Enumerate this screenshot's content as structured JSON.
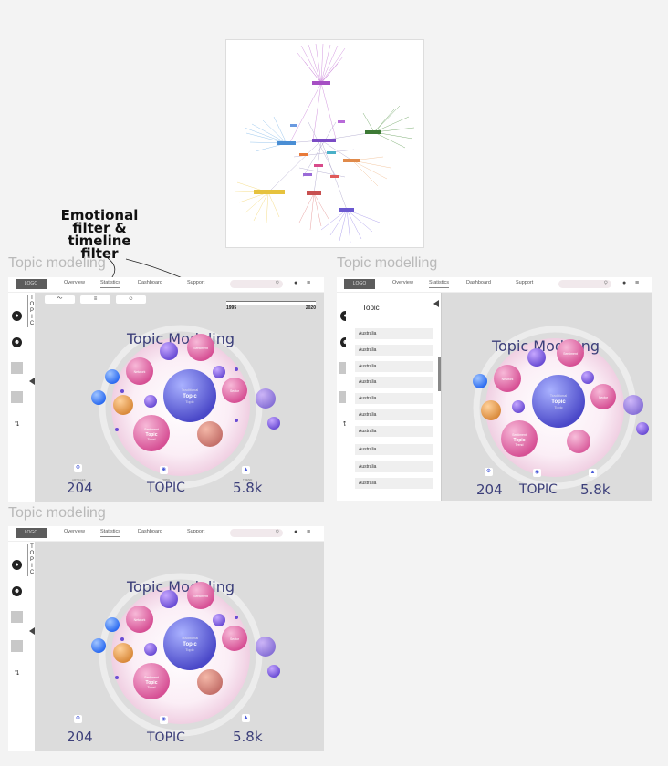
{
  "annotation": {
    "text_line1": "Emotional",
    "text_line2": "filter &",
    "text_line3": "timeline",
    "text_line4": "filter"
  },
  "panel_titles": {
    "top_left": "Topic modeling",
    "top_right": "Topic modelling",
    "bottom_left": "Topic modeling"
  },
  "header": {
    "logo": "LOGO",
    "nav": [
      "Overview",
      "Statistics",
      "Dashboard",
      "Support"
    ],
    "active_nav": "Statistics"
  },
  "sidebar": {
    "vertical_label": [
      "T",
      "O",
      "P",
      "I",
      "C"
    ]
  },
  "filters": {
    "buttons": [
      "〜",
      "≡",
      "☺"
    ]
  },
  "timeline": {
    "start_year": "1995",
    "end_year": "2020"
  },
  "chart": {
    "title": "Topic Modeling",
    "center_label_small": "Traditional",
    "center_label_big": "Topic",
    "center_label_sub": "Topic",
    "bubble_labels": [
      "Sentiment",
      "Topic",
      "Trend",
      "Network",
      "Sector"
    ]
  },
  "stats": {
    "left_value": "204",
    "center_word": "TOPIC",
    "right_value": "5.8k",
    "left_caption": "ARTICLES",
    "center_caption": "TOPIC",
    "right_caption": "TREND"
  },
  "dropdown": {
    "title": "Topic",
    "items": [
      "Australia",
      "Australia",
      "Australia",
      "Australia",
      "Australia",
      "Australia",
      "Australia",
      "Australia",
      "Australia",
      "Australia"
    ]
  },
  "colors": {
    "accent": "#5a5cd6",
    "title": "#3c3f7a",
    "pink": "#e0609c",
    "orange": "#e9a052",
    "blue": "#3d7cf0"
  }
}
